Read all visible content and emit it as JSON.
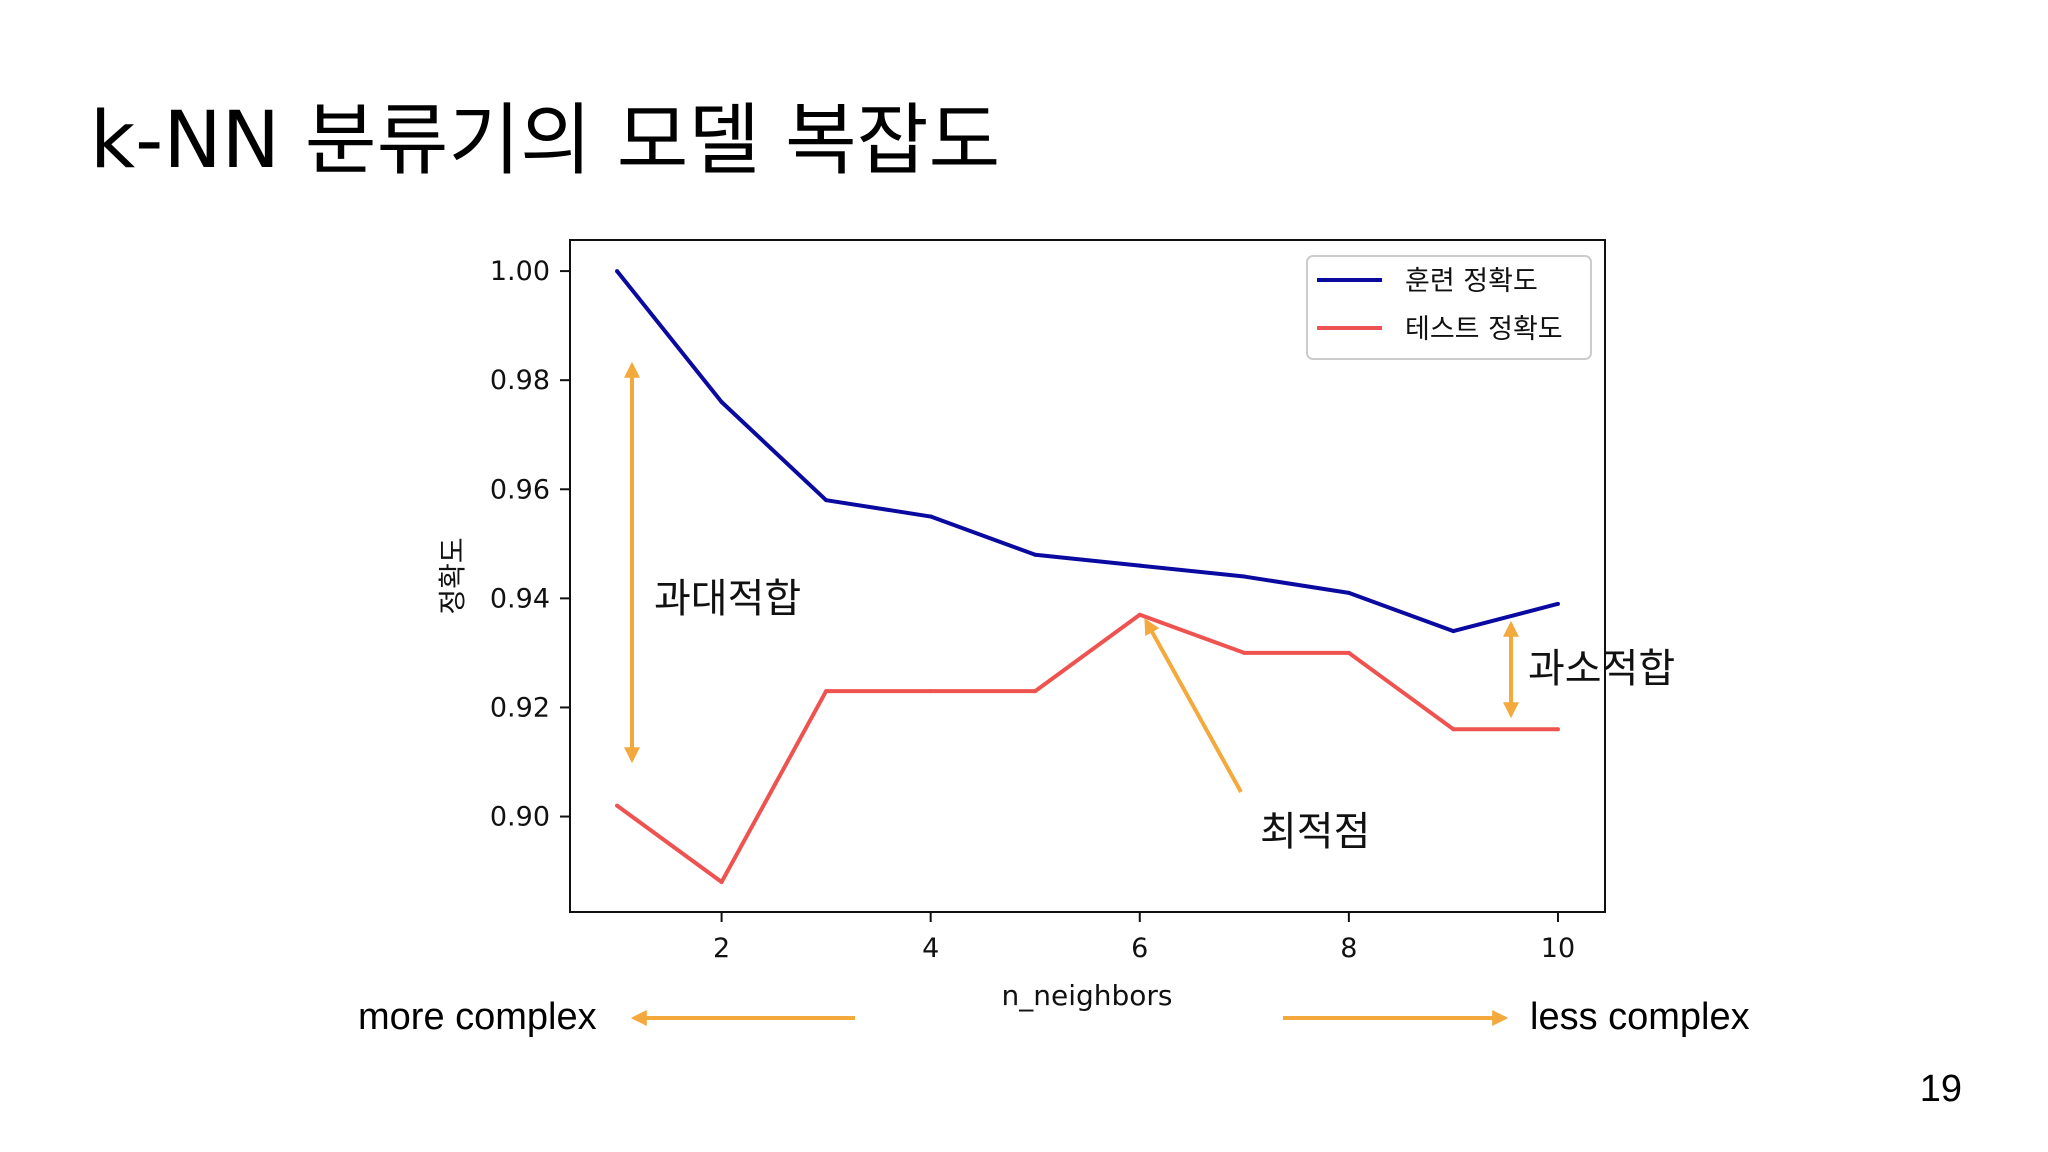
{
  "slide": {
    "title": "k-NN 분류기의 모델 복잡도",
    "page_number": "19"
  },
  "directions": {
    "left_label": "more complex",
    "right_label": "less complex",
    "arrow_color": "#f4a93c"
  },
  "annotations": {
    "overfit": "과대적합",
    "underfit": "과소적합",
    "optimum": "최적점",
    "arrow_color": "#f4a93c"
  },
  "chart_data": {
    "type": "line",
    "xlabel": "n_neighbors",
    "ylabel": "정확도",
    "x": [
      1,
      2,
      3,
      4,
      5,
      6,
      7,
      8,
      9,
      10
    ],
    "xticks": [
      2,
      4,
      6,
      8,
      10
    ],
    "xtick_labels": [
      "2",
      "4",
      "6",
      "8",
      "10"
    ],
    "yticks": [
      0.9,
      0.92,
      0.94,
      0.96,
      0.98,
      1.0
    ],
    "ytick_labels": [
      "0.90",
      "0.92",
      "0.94",
      "0.96",
      "0.98",
      "1.00"
    ],
    "xlim": [
      0.55,
      10.45
    ],
    "ylim": [
      0.8825,
      1.0057
    ],
    "grid": false,
    "legend_position": "upper right",
    "series": [
      {
        "name": "훈련 정확도",
        "color": "#0a0aa0",
        "values": [
          1.0,
          0.976,
          0.958,
          0.955,
          0.948,
          0.946,
          0.944,
          0.941,
          0.934,
          0.939
        ]
      },
      {
        "name": "테스트 정확도",
        "color": "#ee5350",
        "values": [
          0.902,
          0.888,
          0.923,
          0.923,
          0.923,
          0.937,
          0.93,
          0.93,
          0.916,
          0.916
        ]
      }
    ]
  }
}
